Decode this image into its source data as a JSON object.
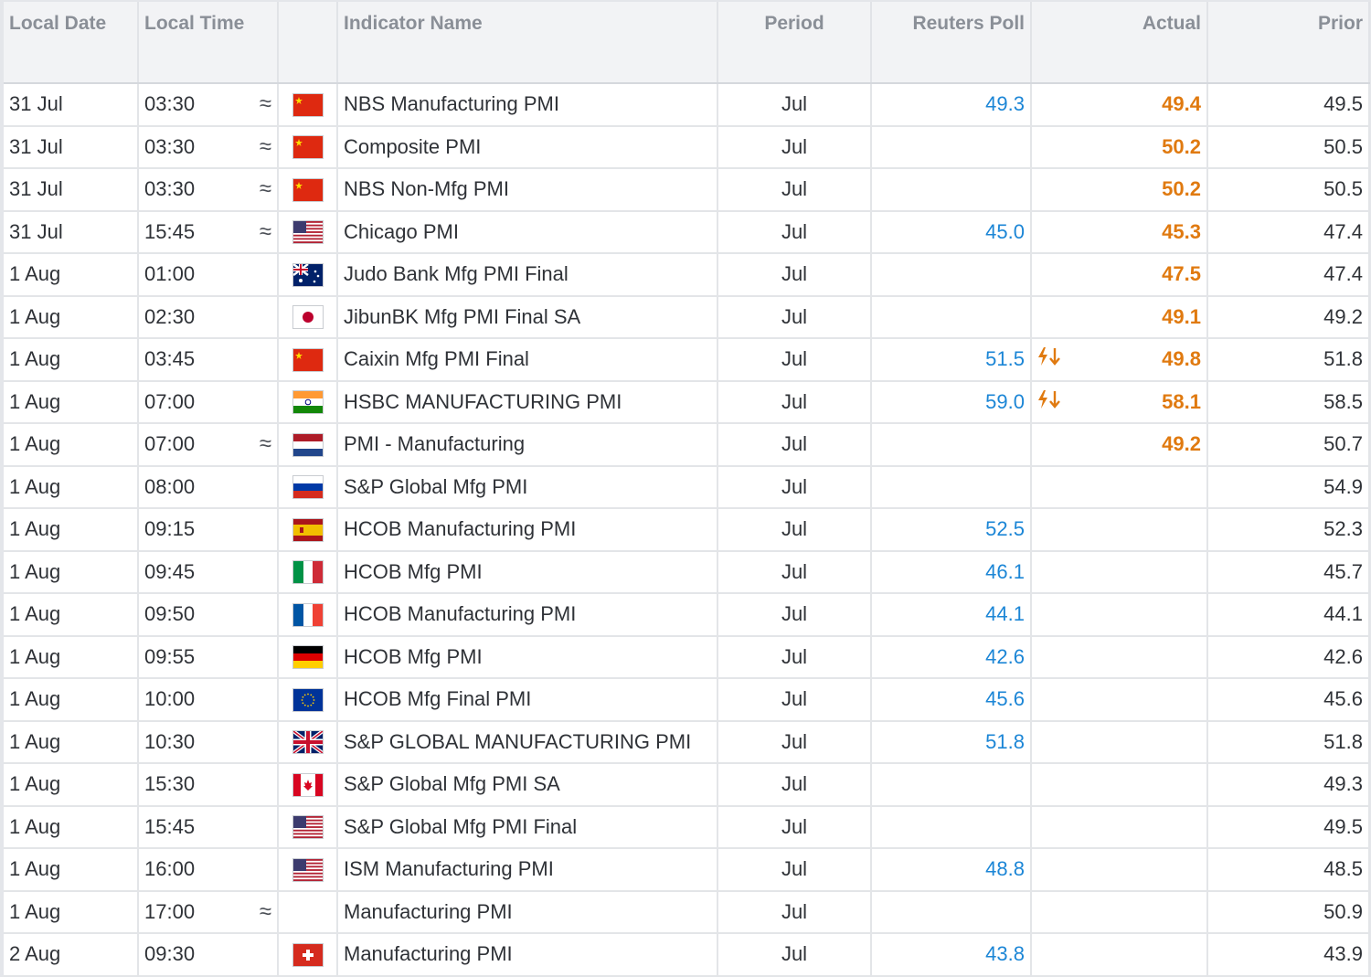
{
  "headers": {
    "date": "Local Date",
    "time": "Local Time",
    "flag": "",
    "name": "Indicator Name",
    "period": "Period",
    "poll": "Reuters Poll",
    "actual": "Actual",
    "prior": "Prior"
  },
  "rows": [
    {
      "date": "31 Jul",
      "time": "03:30",
      "approx": "≈",
      "flag": "cn",
      "name": "NBS Manufacturing PMI",
      "period": "Jul",
      "poll": "49.3",
      "surprise": "",
      "actual": "49.4",
      "prior": "49.5"
    },
    {
      "date": "31 Jul",
      "time": "03:30",
      "approx": "≈",
      "flag": "cn",
      "name": "Composite PMI",
      "period": "Jul",
      "poll": "",
      "surprise": "",
      "actual": "50.2",
      "prior": "50.5"
    },
    {
      "date": "31 Jul",
      "time": "03:30",
      "approx": "≈",
      "flag": "cn",
      "name": "NBS Non-Mfg PMI",
      "period": "Jul",
      "poll": "",
      "surprise": "",
      "actual": "50.2",
      "prior": "50.5"
    },
    {
      "date": "31 Jul",
      "time": "15:45",
      "approx": "≈",
      "flag": "us",
      "name": "Chicago PMI",
      "period": "Jul",
      "poll": "45.0",
      "surprise": "",
      "actual": "45.3",
      "prior": "47.4"
    },
    {
      "date": "1 Aug",
      "time": "01:00",
      "approx": "",
      "flag": "au",
      "name": "Judo Bank Mfg PMI Final",
      "period": "Jul",
      "poll": "",
      "surprise": "",
      "actual": "47.5",
      "prior": "47.4"
    },
    {
      "date": "1 Aug",
      "time": "02:30",
      "approx": "",
      "flag": "jp",
      "name": "JibunBK Mfg PMI Final SA",
      "period": "Jul",
      "poll": "",
      "surprise": "",
      "actual": "49.1",
      "prior": "49.2"
    },
    {
      "date": "1 Aug",
      "time": "03:45",
      "approx": "",
      "flag": "cn",
      "name": "Caixin Mfg PMI Final",
      "period": "Jul",
      "poll": "51.5",
      "surprise": "down",
      "actual": "49.8",
      "prior": "51.8"
    },
    {
      "date": "1 Aug",
      "time": "07:00",
      "approx": "",
      "flag": "in",
      "name": "HSBC MANUFACTURING PMI",
      "period": "Jul",
      "poll": "59.0",
      "surprise": "down",
      "actual": "58.1",
      "prior": "58.5"
    },
    {
      "date": "1 Aug",
      "time": "07:00",
      "approx": "≈",
      "flag": "nl",
      "name": "PMI - Manufacturing",
      "period": "Jul",
      "poll": "",
      "surprise": "",
      "actual": "49.2",
      "prior": "50.7"
    },
    {
      "date": "1 Aug",
      "time": "08:00",
      "approx": "",
      "flag": "ru",
      "name": "S&P Global Mfg PMI",
      "period": "Jul",
      "poll": "",
      "surprise": "",
      "actual": "",
      "prior": "54.9"
    },
    {
      "date": "1 Aug",
      "time": "09:15",
      "approx": "",
      "flag": "es",
      "name": "HCOB Manufacturing PMI",
      "period": "Jul",
      "poll": "52.5",
      "surprise": "",
      "actual": "",
      "prior": "52.3"
    },
    {
      "date": "1 Aug",
      "time": "09:45",
      "approx": "",
      "flag": "it",
      "name": "HCOB Mfg PMI",
      "period": "Jul",
      "poll": "46.1",
      "surprise": "",
      "actual": "",
      "prior": "45.7"
    },
    {
      "date": "1 Aug",
      "time": "09:50",
      "approx": "",
      "flag": "fr",
      "name": "HCOB Manufacturing PMI",
      "period": "Jul",
      "poll": "44.1",
      "surprise": "",
      "actual": "",
      "prior": "44.1"
    },
    {
      "date": "1 Aug",
      "time": "09:55",
      "approx": "",
      "flag": "de",
      "name": "HCOB Mfg PMI",
      "period": "Jul",
      "poll": "42.6",
      "surprise": "",
      "actual": "",
      "prior": "42.6"
    },
    {
      "date": "1 Aug",
      "time": "10:00",
      "approx": "",
      "flag": "eu",
      "name": "HCOB Mfg Final PMI",
      "period": "Jul",
      "poll": "45.6",
      "surprise": "",
      "actual": "",
      "prior": "45.6"
    },
    {
      "date": "1 Aug",
      "time": "10:30",
      "approx": "",
      "flag": "gb",
      "name": "S&P GLOBAL MANUFACTURING PMI",
      "period": "Jul",
      "poll": "51.8",
      "surprise": "",
      "actual": "",
      "prior": "51.8"
    },
    {
      "date": "1 Aug",
      "time": "15:30",
      "approx": "",
      "flag": "ca",
      "name": "S&P Global Mfg PMI SA",
      "period": "Jul",
      "poll": "",
      "surprise": "",
      "actual": "",
      "prior": "49.3"
    },
    {
      "date": "1 Aug",
      "time": "15:45",
      "approx": "",
      "flag": "us",
      "name": "S&P Global Mfg PMI Final",
      "period": "Jul",
      "poll": "",
      "surprise": "",
      "actual": "",
      "prior": "49.5"
    },
    {
      "date": "1 Aug",
      "time": "16:00",
      "approx": "",
      "flag": "us",
      "name": "ISM Manufacturing PMI",
      "period": "Jul",
      "poll": "48.8",
      "surprise": "",
      "actual": "",
      "prior": "48.5"
    },
    {
      "date": "1 Aug",
      "time": "17:00",
      "approx": "≈",
      "flag": "",
      "name": "Manufacturing PMI",
      "period": "Jul",
      "poll": "",
      "surprise": "",
      "actual": "",
      "prior": "50.9"
    },
    {
      "date": "2 Aug",
      "time": "09:30",
      "approx": "",
      "flag": "ch",
      "name": "Manufacturing PMI",
      "period": "Jul",
      "poll": "43.8",
      "surprise": "",
      "actual": "",
      "prior": "43.9"
    }
  ],
  "colors": {
    "poll": "#1c86d6",
    "actual": "#e07a10",
    "header_bg": "#f2f3f5"
  }
}
